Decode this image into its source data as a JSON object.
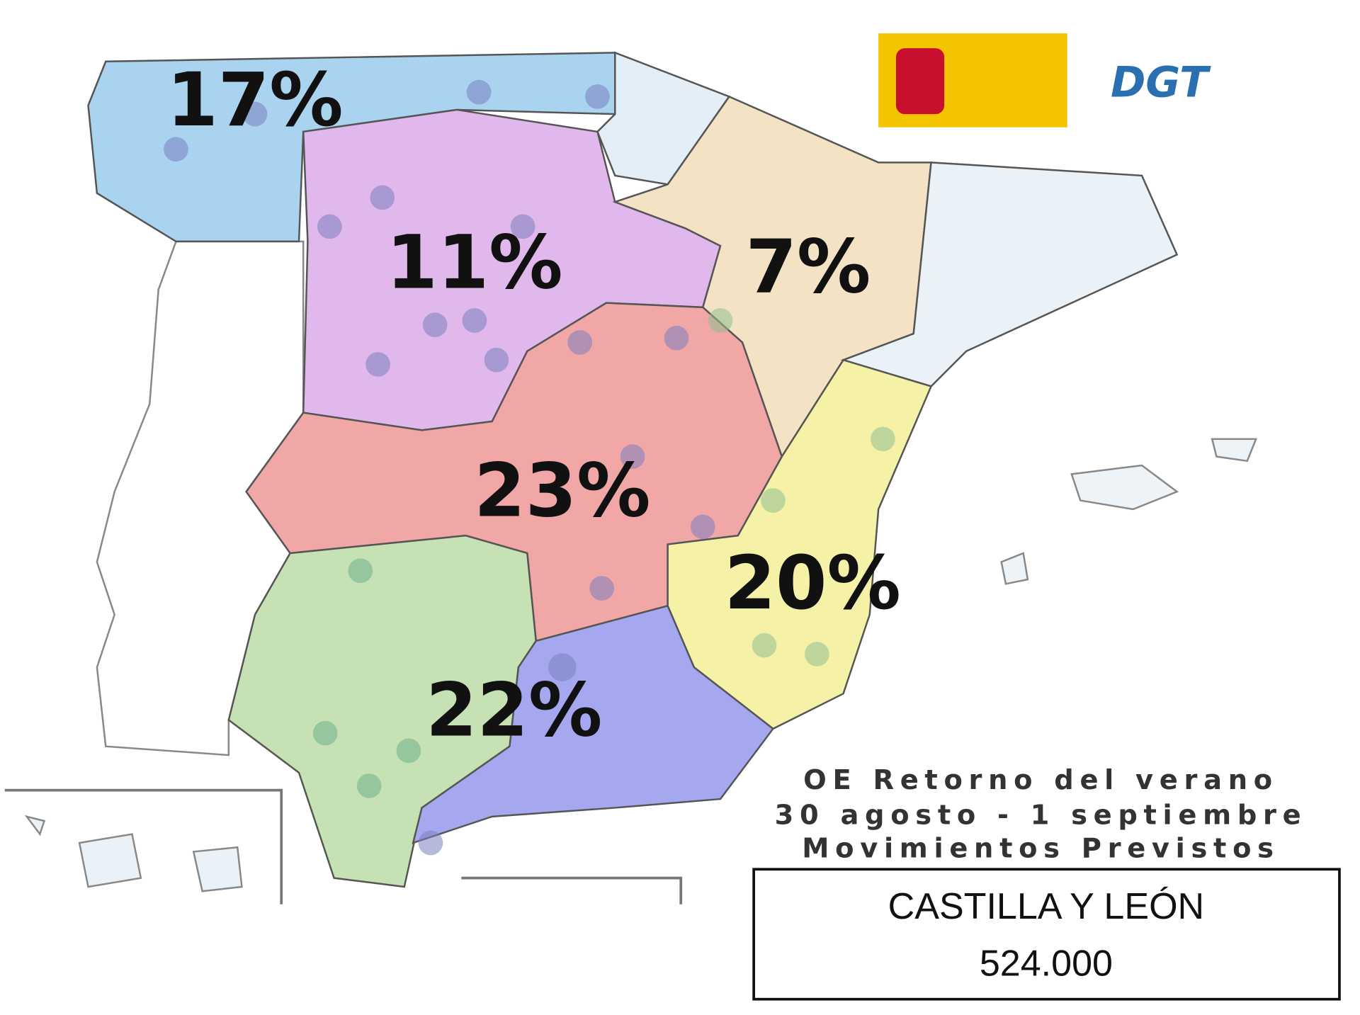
{
  "logo": {
    "text": "DGT"
  },
  "regions": [
    {
      "label": "17%"
    },
    {
      "label": "11%"
    },
    {
      "label": "7%"
    },
    {
      "label": "23%"
    },
    {
      "label": "20%"
    },
    {
      "label": "22%"
    }
  ],
  "caption": {
    "lines": [
      "OE Retorno del verano",
      "30 agosto - 1 septiembre",
      "Movimientos Previstos"
    ]
  },
  "summary": {
    "region": "CASTILLA Y LEÓN",
    "total": "524.000"
  }
}
